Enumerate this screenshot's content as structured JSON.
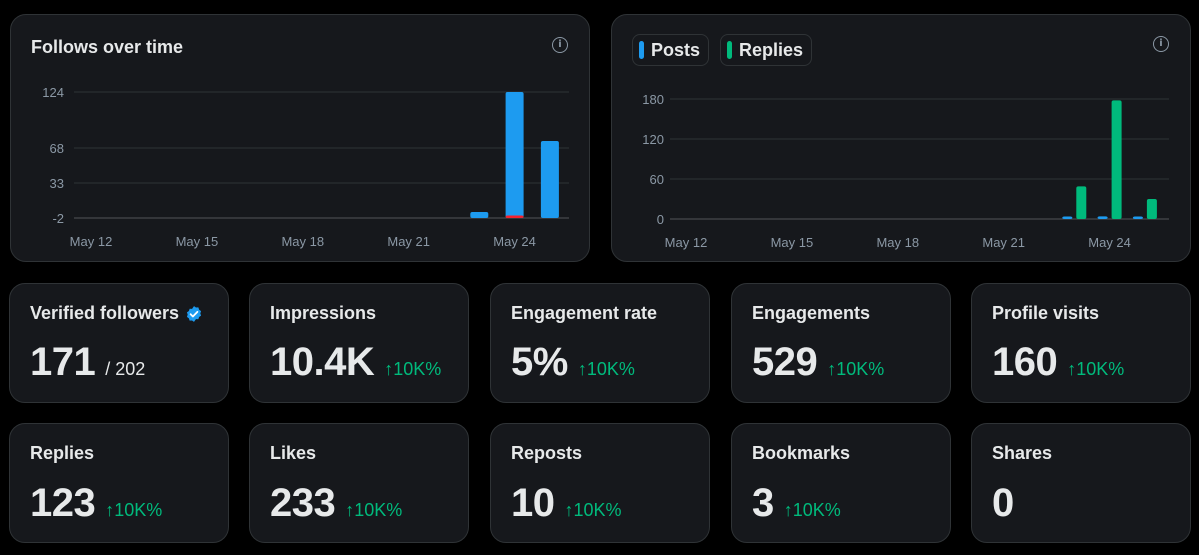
{
  "follows_chart": {
    "title": "Follows over time",
    "info_icon": "info-icon",
    "chart_data": {
      "type": "bar",
      "x_ticks": [
        "May 12",
        "May 15",
        "May 18",
        "May 21",
        "May 24"
      ],
      "y_ticks": [
        "124",
        "68",
        "33",
        "-2"
      ],
      "ylim": [
        -2,
        124
      ],
      "grid": true,
      "series": [
        {
          "color": "#1d9bf0",
          "points": [
            {
              "x": "2024-05-23",
              "y": 4
            },
            {
              "x": "2024-05-24",
              "y": 124
            },
            {
              "x": "2024-05-25",
              "y": 75
            }
          ]
        },
        {
          "color": "#f4212e",
          "points": [
            {
              "x": "2024-05-24",
              "y": -2
            }
          ]
        }
      ]
    }
  },
  "posts_replies_chart": {
    "legend": [
      {
        "label": "Posts",
        "color": "#1d9bf0"
      },
      {
        "label": "Replies",
        "color": "#00ba7c"
      }
    ],
    "info_icon": "info-icon",
    "chart_data": {
      "type": "bar",
      "x_ticks": [
        "May 12",
        "May 15",
        "May 18",
        "May 21",
        "May 24"
      ],
      "y_ticks": [
        "180",
        "120",
        "60",
        "0"
      ],
      "ylim": [
        0,
        180
      ],
      "grid": true,
      "series": [
        {
          "name": "Posts",
          "color": "#1d9bf0",
          "points": [
            {
              "x": "2024-05-23",
              "y": 3
            },
            {
              "x": "2024-05-24",
              "y": 4
            },
            {
              "x": "2024-05-25",
              "y": 2
            }
          ]
        },
        {
          "name": "Replies",
          "color": "#00ba7c",
          "points": [
            {
              "x": "2024-05-23",
              "y": 49
            },
            {
              "x": "2024-05-24",
              "y": 178
            },
            {
              "x": "2024-05-25",
              "y": 30
            }
          ]
        }
      ]
    }
  },
  "stats": [
    {
      "label": "Verified followers",
      "value": "171",
      "suffix": "/ 202",
      "delta": "",
      "badge": "verified-badge-icon"
    },
    {
      "label": "Impressions",
      "value": "10.4K",
      "suffix": "",
      "delta": "↑10K%"
    },
    {
      "label": "Engagement rate",
      "value": "5%",
      "suffix": "",
      "delta": "↑10K%"
    },
    {
      "label": "Engagements",
      "value": "529",
      "suffix": "",
      "delta": "↑10K%"
    },
    {
      "label": "Profile visits",
      "value": "160",
      "suffix": "",
      "delta": "↑10K%"
    },
    {
      "label": "Replies",
      "value": "123",
      "suffix": "",
      "delta": "↑10K%"
    },
    {
      "label": "Likes",
      "value": "233",
      "suffix": "",
      "delta": "↑10K%"
    },
    {
      "label": "Reposts",
      "value": "10",
      "suffix": "",
      "delta": "↑10K%"
    },
    {
      "label": "Bookmarks",
      "value": "3",
      "suffix": "",
      "delta": "↑10K%"
    },
    {
      "label": "Shares",
      "value": "0",
      "suffix": "",
      "delta": ""
    }
  ],
  "colors": {
    "background": "#000000",
    "card": "#16181c",
    "border": "#2f3336",
    "text": "#e7e9ea",
    "muted": "#8b98a5",
    "positive": "#00ba7c",
    "accent": "#1d9bf0"
  }
}
